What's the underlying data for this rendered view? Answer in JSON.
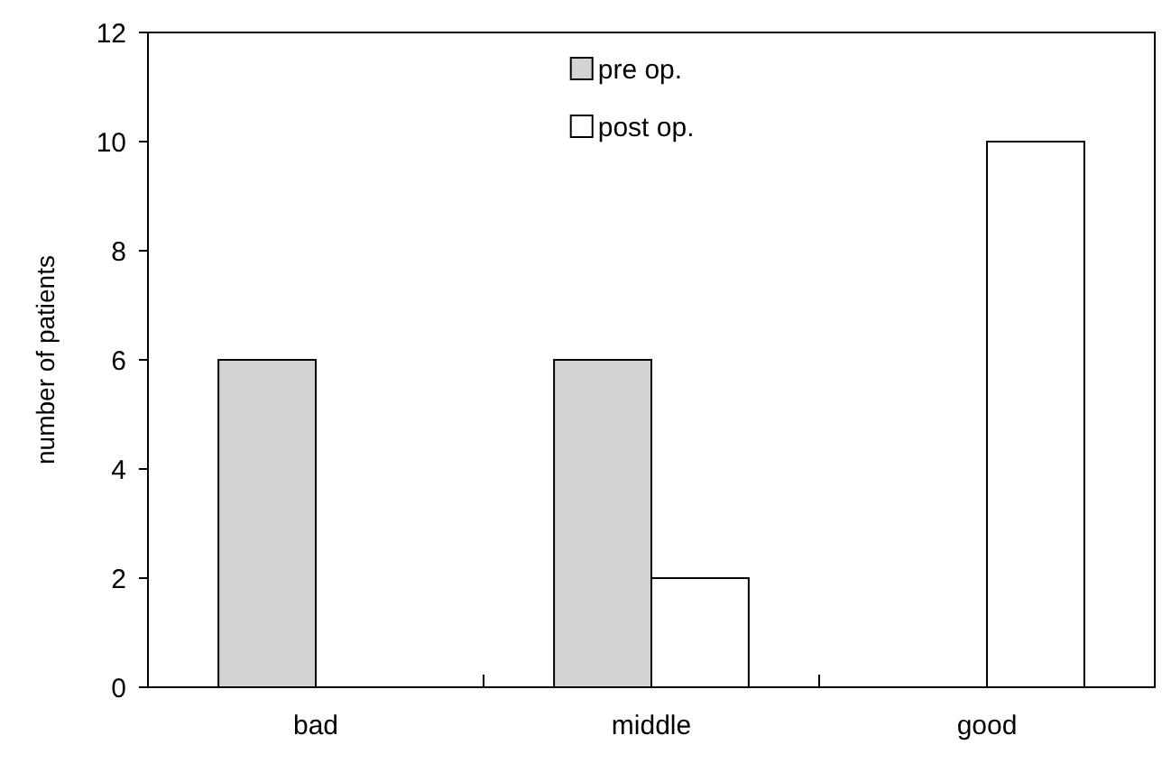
{
  "chart_data": {
    "type": "bar",
    "ylabel": "number of patients",
    "categories": [
      "bad",
      "middle",
      "good"
    ],
    "series": [
      {
        "name": "pre op.",
        "color": "#d3d3d3",
        "values": [
          6,
          6,
          0
        ]
      },
      {
        "name": "post op.",
        "color": "#ffffff",
        "values": [
          0,
          2,
          10
        ]
      }
    ],
    "ylim": [
      0,
      12
    ],
    "yticks": [
      0,
      2,
      4,
      6,
      8,
      10,
      12
    ],
    "grid": false,
    "legend": "top"
  }
}
